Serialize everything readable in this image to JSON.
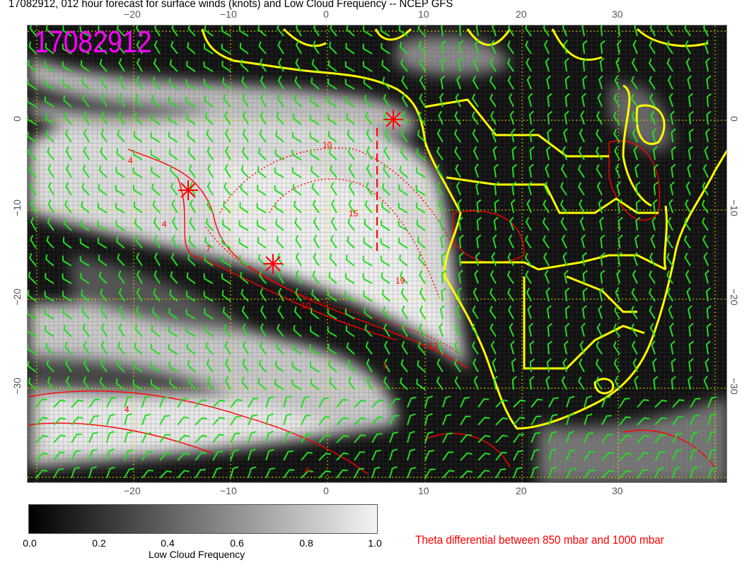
{
  "title": "17082912, 012 hour forecast for surface winds (knots) and Low Cloud Frequency -- NCEP GFS",
  "date_label": "17082912",
  "x_ticks": [
    "−20",
    "−10",
    "0",
    "10",
    "20",
    "30"
  ],
  "y_ticks": [
    "0",
    "−10",
    "−20",
    "−30"
  ],
  "contour_labels": [
    "10",
    "15",
    "10",
    "13",
    "4",
    "7",
    "4",
    "19",
    "4",
    "1",
    "4"
  ],
  "colorbar": {
    "ticks": [
      "0.0",
      "0.2",
      "0.4",
      "0.6",
      "0.8",
      "1.0"
    ],
    "label": "Low Cloud Frequency"
  },
  "legend_text": "Theta differential between 850 mbar and 1000 mbar",
  "colors": {
    "wind_barbs": "#22dd22",
    "coastlines": "#ffff00",
    "theta_contours": "#ff0000",
    "date_label": "#ff00ff",
    "grid": "#dddd00"
  }
}
